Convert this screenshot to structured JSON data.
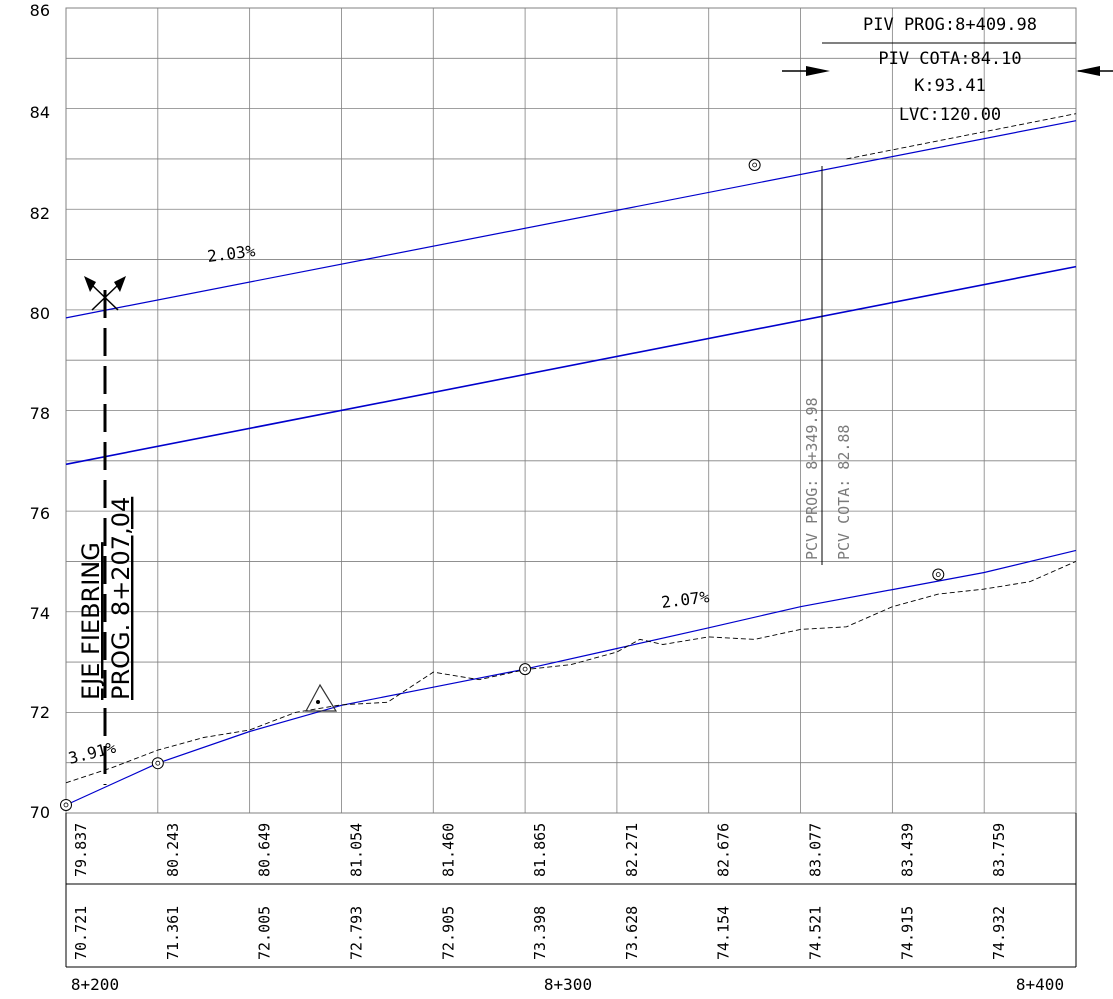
{
  "chart_data": {
    "type": "line",
    "title": "",
    "xlabel": "",
    "ylabel": "",
    "ylim": [
      70,
      86
    ],
    "xlim": [
      "8+200",
      "8+400"
    ],
    "grid": true,
    "y_ticks": [
      "70",
      "72",
      "74",
      "76",
      "78",
      "80",
      "82",
      "84",
      "86"
    ],
    "x_ticks": [
      "8+200",
      "8+300",
      "8+400"
    ],
    "row_top": [
      "79.837",
      "80.243",
      "80.649",
      "81.054",
      "81.460",
      "81.865",
      "82.271",
      "82.676",
      "83.077",
      "83.439",
      "83.759"
    ],
    "row_bottom": [
      "70.721",
      "71.361",
      "72.005",
      "72.793",
      "72.905",
      "73.398",
      "73.628",
      "74.154",
      "74.521",
      "74.915",
      "74.932"
    ],
    "series": [
      {
        "x": [
          8200,
          8420
        ],
        "y": [
          79.84,
          83.76
        ]
      },
      {
        "x": [
          8200,
          8420
        ],
        "y": [
          76.93,
          80.86
        ]
      },
      {
        "x": [
          8200,
          8220,
          8240,
          8260,
          8280,
          8300,
          8320,
          8340,
          8360,
          8380,
          8400,
          8420
        ],
        "y": [
          70.16,
          70.99,
          71.62,
          72.14,
          72.5,
          72.86,
          73.27,
          73.68,
          74.1,
          74.44,
          74.78,
          75.22
        ]
      },
      {
        "x": [
          8200,
          8210,
          8220,
          8230,
          8240,
          8250,
          8260,
          8270,
          8280,
          8290,
          8300,
          8310,
          8320,
          8325,
          8330,
          8340,
          8350,
          8360,
          8370,
          8380,
          8390,
          8400,
          8410,
          8420
        ],
        "y": [
          70.6,
          70.9,
          71.25,
          71.5,
          71.65,
          72.0,
          72.15,
          72.2,
          72.8,
          72.65,
          72.85,
          72.95,
          73.2,
          73.45,
          73.35,
          73.5,
          73.45,
          73.65,
          73.7,
          74.1,
          74.35,
          74.45,
          74.6,
          75.0
        ]
      }
    ],
    "grades": [
      "2.03%",
      "2.07%",
      "3.91%"
    ],
    "axis_label": [
      "EJE FIEBRING",
      "PROG. 8+207,04"
    ],
    "pcv_labels": [
      "PCV PROG: 8+349.98",
      "PCV COTA: 82.88"
    ],
    "piv_labels": [
      "PIV  PROG:8+409.98",
      "PIV  COTA:84.10",
      "K:93.41",
      "LVC:120.00"
    ],
    "colors": {
      "design": "#0000cc",
      "grid": "#808080",
      "ground": "#000000",
      "annotation": "#7a7a7a"
    }
  }
}
